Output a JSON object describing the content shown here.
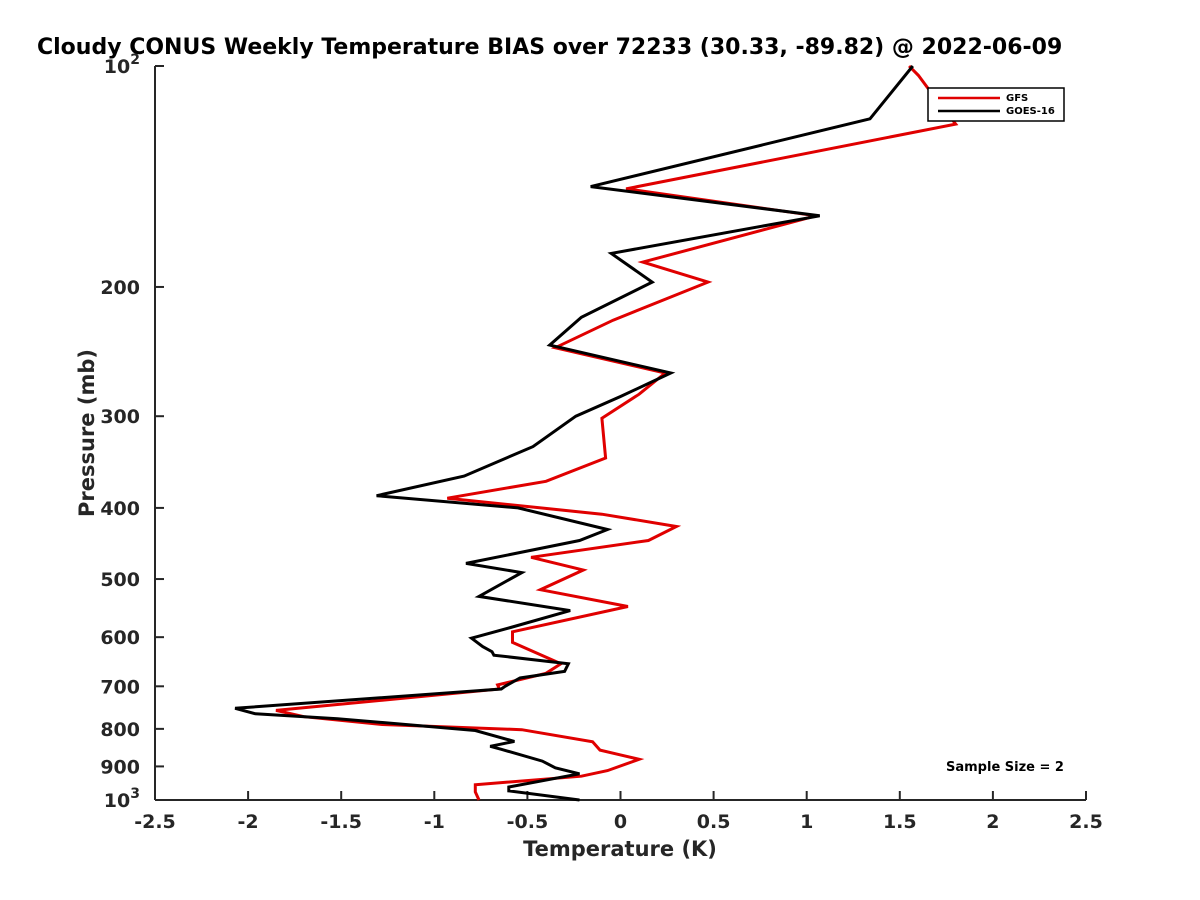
{
  "chart_data": {
    "type": "line",
    "orientation": "profile",
    "title": "Cloudy CONUS Weekly Temperature BIAS over 72233 (30.33, -89.82) @ 2022-06-09",
    "xlabel": "Temperature (K)",
    "ylabel": "Pressure (mb)",
    "xlim": [
      -2.5,
      2.5
    ],
    "ylim": [
      100,
      1000
    ],
    "yscale": "log",
    "y_reversed": true,
    "grid": false,
    "legend_position": "top-right",
    "x_ticks": [
      {
        "value": -2.5,
        "label": "-2.5"
      },
      {
        "value": -2,
        "label": "-2"
      },
      {
        "value": -1.5,
        "label": "-1.5"
      },
      {
        "value": -1,
        "label": "-1"
      },
      {
        "value": -0.5,
        "label": "-0.5"
      },
      {
        "value": 0,
        "label": "0"
      },
      {
        "value": 0.5,
        "label": "0.5"
      },
      {
        "value": 1,
        "label": "1"
      },
      {
        "value": 1.5,
        "label": "1.5"
      },
      {
        "value": 2,
        "label": "2"
      },
      {
        "value": 2.5,
        "label": "2.5"
      }
    ],
    "y_ticks": [
      {
        "value": 100,
        "base": "10",
        "exp": "2"
      },
      {
        "value": 200,
        "label": "200"
      },
      {
        "value": 300,
        "label": "300"
      },
      {
        "value": 400,
        "label": "400"
      },
      {
        "value": 500,
        "label": "500"
      },
      {
        "value": 600,
        "label": "600"
      },
      {
        "value": 700,
        "label": "700"
      },
      {
        "value": 800,
        "label": "800"
      },
      {
        "value": 900,
        "label": "900"
      },
      {
        "value": 1000,
        "base": "10",
        "exp": "3"
      }
    ],
    "series": [
      {
        "name": "GFS",
        "color": "#e00000",
        "points": [
          [
            1.55,
            100
          ],
          [
            1.6,
            103
          ],
          [
            1.66,
            108
          ],
          [
            1.8,
            120
          ],
          [
            0.03,
            147
          ],
          [
            1.05,
            160
          ],
          [
            0.12,
            185
          ],
          [
            0.47,
            197
          ],
          [
            -0.04,
            222
          ],
          [
            -0.35,
            242
          ],
          [
            0.24,
            262
          ],
          [
            0.1,
            280
          ],
          [
            -0.1,
            302
          ],
          [
            -0.08,
            342
          ],
          [
            -0.4,
            368
          ],
          [
            -0.93,
            388
          ],
          [
            -0.1,
            408
          ],
          [
            0.3,
            424
          ],
          [
            0.15,
            443
          ],
          [
            -0.48,
            467
          ],
          [
            -0.2,
            486
          ],
          [
            -0.43,
            517
          ],
          [
            0.04,
            545
          ],
          [
            -0.58,
            590
          ],
          [
            -0.58,
            610
          ],
          [
            -0.32,
            652
          ],
          [
            -0.4,
            672
          ],
          [
            -0.66,
            697
          ],
          [
            -0.65,
            706
          ],
          [
            -1.85,
            755
          ],
          [
            -1.7,
            770
          ],
          [
            -1.28,
            789
          ],
          [
            -0.53,
            802
          ],
          [
            -0.15,
            833
          ],
          [
            -0.11,
            855
          ],
          [
            0.0,
            868
          ],
          [
            0.1,
            880
          ],
          [
            -0.07,
            912
          ],
          [
            -0.21,
            928
          ],
          [
            -0.78,
            953
          ],
          [
            -0.78,
            975
          ],
          [
            -0.76,
            1000
          ]
        ]
      },
      {
        "name": "GOES-16",
        "color": "#000000",
        "points": [
          [
            1.57,
            100
          ],
          [
            1.34,
            118
          ],
          [
            -0.16,
            146
          ],
          [
            1.07,
            160
          ],
          [
            -0.05,
            180
          ],
          [
            0.17,
            197
          ],
          [
            -0.21,
            220
          ],
          [
            -0.38,
            240
          ],
          [
            0.27,
            262
          ],
          [
            0.0,
            282
          ],
          [
            -0.24,
            300
          ],
          [
            -0.47,
            330
          ],
          [
            -0.84,
            362
          ],
          [
            -1.31,
            385
          ],
          [
            -0.55,
            400
          ],
          [
            -0.07,
            428
          ],
          [
            -0.22,
            443
          ],
          [
            -0.83,
            476
          ],
          [
            -0.53,
            490
          ],
          [
            -0.76,
            528
          ],
          [
            -0.27,
            552
          ],
          [
            -0.59,
            582
          ],
          [
            -0.8,
            602
          ],
          [
            -0.74,
            618
          ],
          [
            -0.69,
            628
          ],
          [
            -0.68,
            635
          ],
          [
            -0.28,
            652
          ],
          [
            -0.3,
            668
          ],
          [
            -0.54,
            682
          ],
          [
            -0.62,
            700
          ],
          [
            -0.64,
            706
          ],
          [
            -2.07,
            750
          ],
          [
            -1.96,
            763
          ],
          [
            -1.52,
            775
          ],
          [
            -0.78,
            804
          ],
          [
            -0.57,
            832
          ],
          [
            -0.7,
            845
          ],
          [
            -0.64,
            853
          ],
          [
            -0.42,
            885
          ],
          [
            -0.35,
            904
          ],
          [
            -0.22,
            921
          ],
          [
            -0.6,
            960
          ],
          [
            -0.6,
            972
          ],
          [
            -0.22,
            1000
          ]
        ]
      }
    ],
    "annotations": [
      "Sample Size = 2"
    ]
  }
}
